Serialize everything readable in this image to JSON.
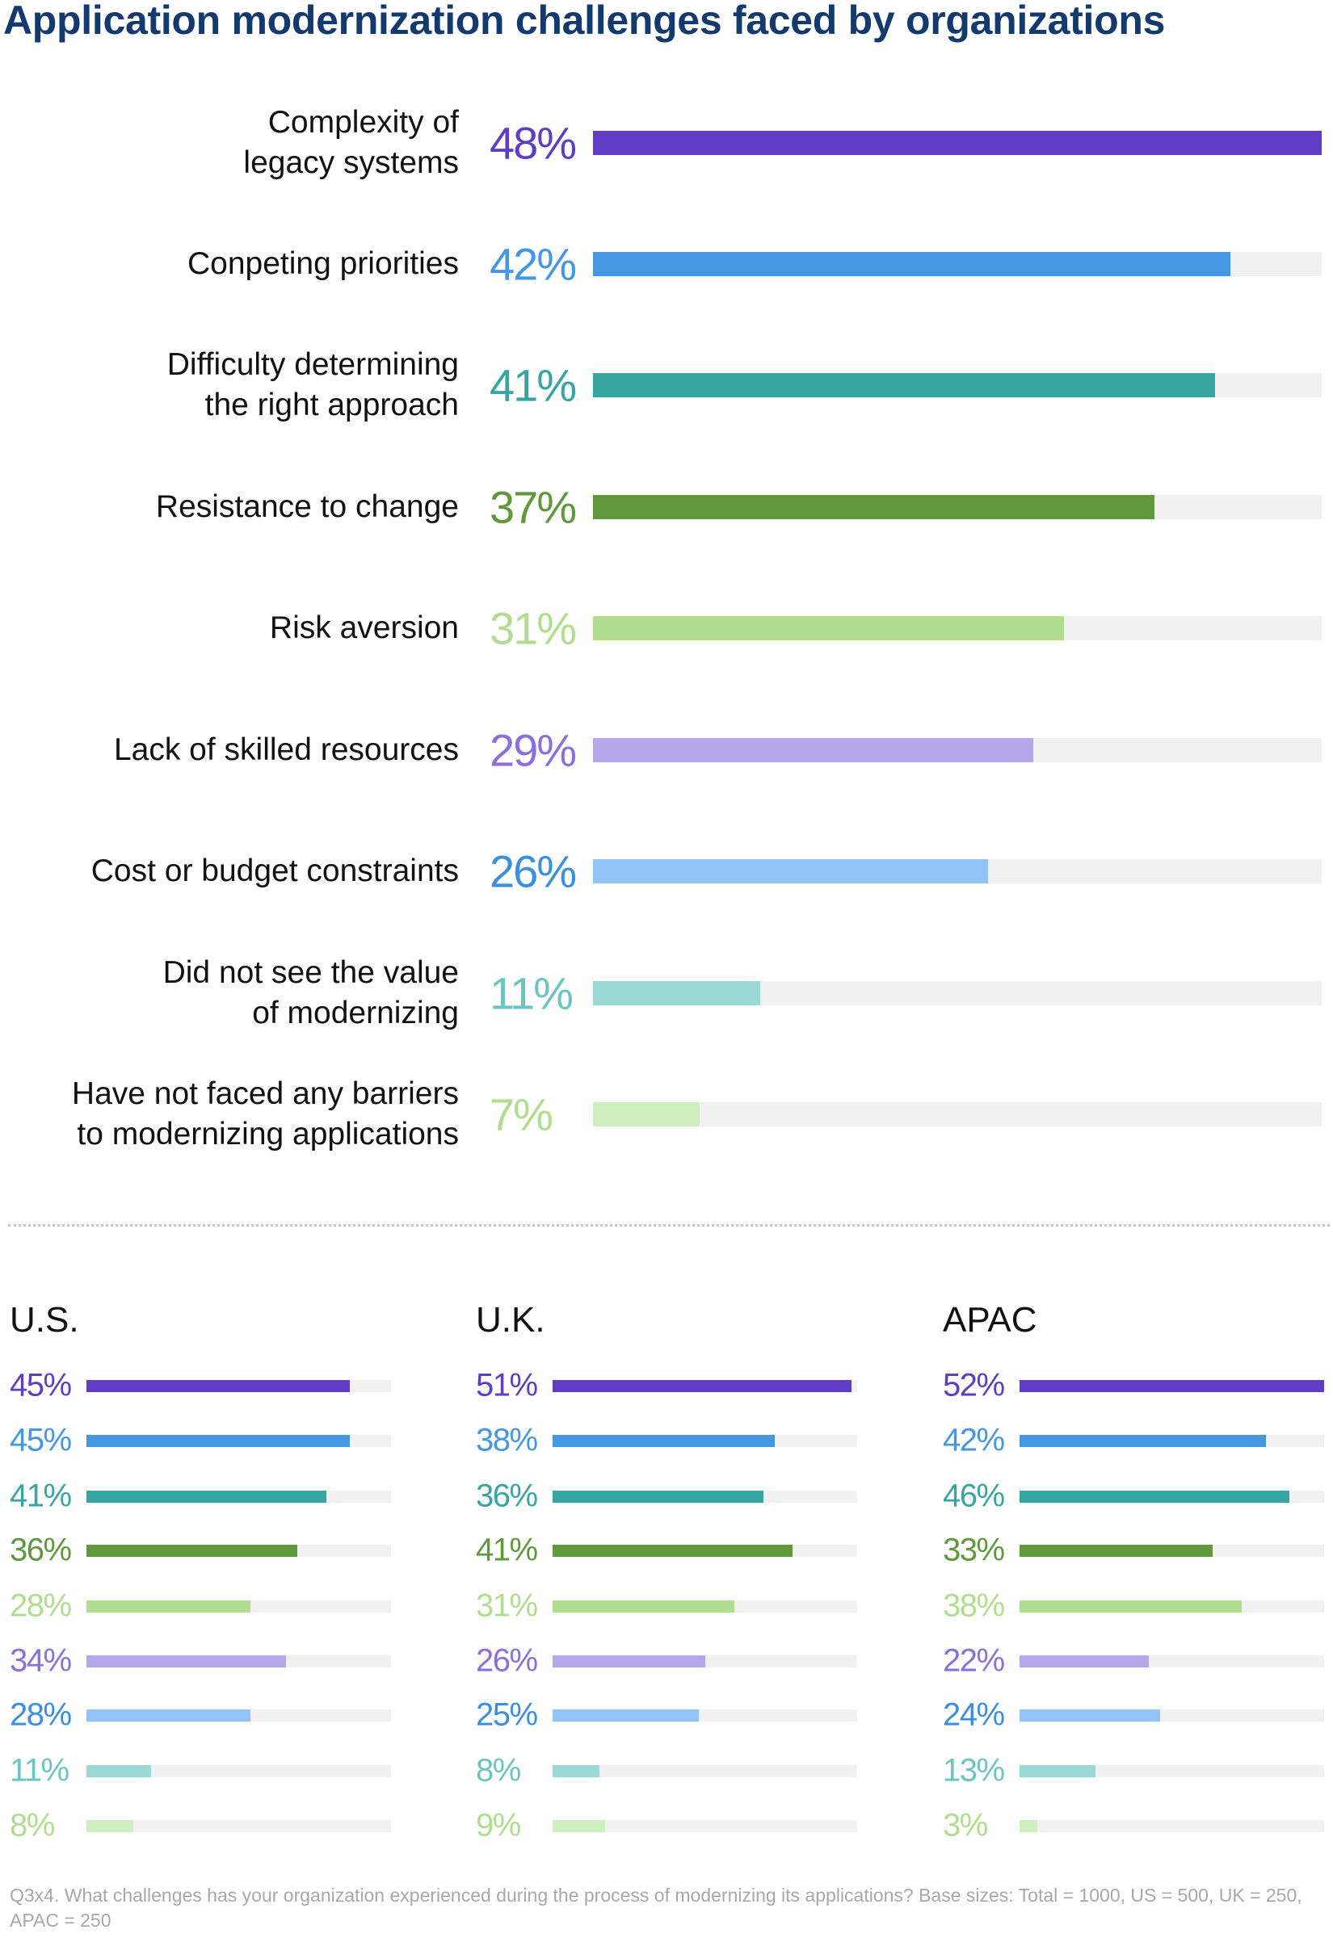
{
  "chart_data": [
    {
      "type": "bar",
      "orientation": "horizontal",
      "title": "Application modernization challenges faced by organizations",
      "categories": [
        "Complexity of\nlegacy systems",
        "Conpeting priorities",
        "Difficulty determining\nthe right approach",
        "Resistance to change",
        "Risk aversion",
        "Lack of skilled resources",
        "Cost or budget constraints",
        "Did not see the value\nof modernizing",
        "Have not faced any barriers\nto modernizing applications"
      ],
      "values": [
        48,
        42,
        41,
        37,
        31,
        29,
        26,
        11,
        7
      ],
      "labels": [
        "48%",
        "42%",
        "41%",
        "37%",
        "31%",
        "29%",
        "26%",
        "11%",
        "7%"
      ],
      "xlim": [
        0,
        48
      ],
      "grid": false
    },
    {
      "type": "bar",
      "orientation": "horizontal",
      "title": "U.S.",
      "values": [
        45,
        45,
        41,
        36,
        28,
        34,
        28,
        11,
        8
      ],
      "labels": [
        "45%",
        "45%",
        "41%",
        "36%",
        "28%",
        "34%",
        "28%",
        "11%",
        "8%"
      ],
      "xlim": [
        0,
        52
      ]
    },
    {
      "type": "bar",
      "orientation": "horizontal",
      "title": "U.K.",
      "values": [
        51,
        38,
        36,
        41,
        31,
        26,
        25,
        8,
        9
      ],
      "labels": [
        "51%",
        "38%",
        "36%",
        "41%",
        "31%",
        "26%",
        "25%",
        "8%",
        "9%"
      ],
      "xlim": [
        0,
        52
      ]
    },
    {
      "type": "bar",
      "orientation": "horizontal",
      "title": "APAC",
      "values": [
        52,
        42,
        46,
        33,
        38,
        22,
        24,
        13,
        3
      ],
      "labels": [
        "52%",
        "42%",
        "46%",
        "33%",
        "38%",
        "22%",
        "24%",
        "13%",
        "3%"
      ],
      "xlim": [
        0,
        52
      ]
    }
  ],
  "colors": {
    "bars": [
      "#5f3dc4",
      "#4597e3",
      "#37a5a1",
      "#5f993c",
      "#b1dd8f",
      "#b6a6ea",
      "#93c4f7",
      "#9ad9d6",
      "#cff0be"
    ],
    "labels": [
      "#5f3dc4",
      "#4597e3",
      "#37a5a1",
      "#5f993c",
      "#b1dd8f",
      "#8b6fdd",
      "#3c8ee0",
      "#6cc5c0",
      "#b1dd8f"
    ],
    "track": "#f1f1f1",
    "title": "#123a6e"
  },
  "footnote": "Q3x4. What challenges has your organization experienced during the process of modernizing its applications? Base sizes: Total = 1000, US = 500, UK = 250, APAC = 250"
}
